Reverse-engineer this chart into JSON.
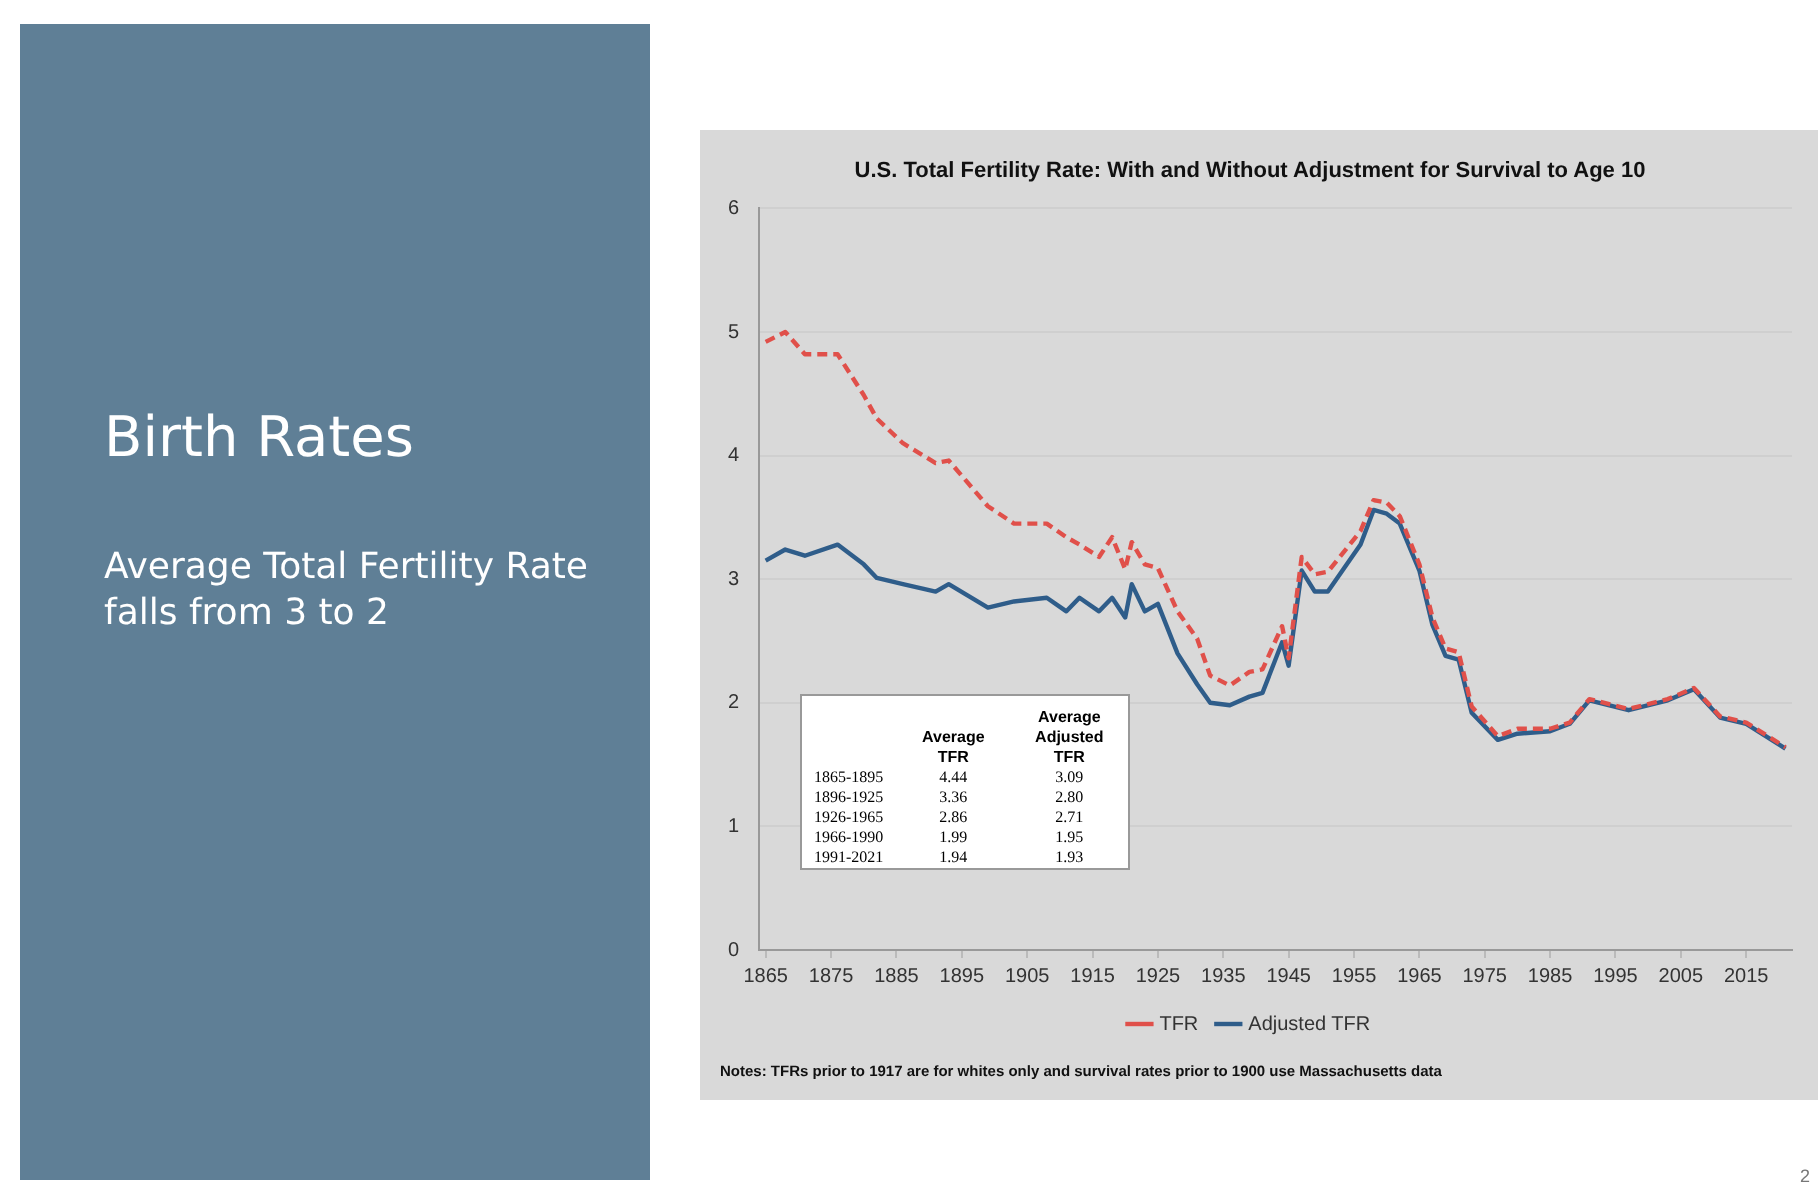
{
  "chart_data": [
    {
      "type": "other",
      "title": "Birth Rates",
      "subtitle": "Average Total Fertility Rate falls from 3 to 2",
      "annotations": [
        "2"
      ]
    },
    {
      "type": "line",
      "title": "U.S. Total Fertility Rate: With and Without Adjustment for Survival to Age 10",
      "x": [
        1865,
        1868,
        1871,
        1876,
        1880,
        1882,
        1886,
        1891,
        1893,
        1899,
        1903,
        1908,
        1911,
        1913,
        1916,
        1918,
        1920,
        1921,
        1923,
        1925,
        1928,
        1931,
        1933,
        1936,
        1939,
        1941,
        1944,
        1945,
        1947,
        1949,
        1951,
        1956,
        1958,
        1960,
        1962,
        1965,
        1967,
        1969,
        1971,
        1973,
        1977,
        1980,
        1985,
        1988,
        1991,
        1997,
        2003,
        2007,
        2011,
        2015,
        2021
      ],
      "series": [
        {
          "name": "TFR",
          "color": "#e0504a",
          "line_style": "dashed",
          "values": [
            4.92,
            5.0,
            4.82,
            4.82,
            4.49,
            4.3,
            4.1,
            3.94,
            3.96,
            3.59,
            3.45,
            3.45,
            3.34,
            3.28,
            3.18,
            3.34,
            3.08,
            3.3,
            3.12,
            3.09,
            2.74,
            2.52,
            2.22,
            2.14,
            2.25,
            2.27,
            2.62,
            2.36,
            3.18,
            3.04,
            3.06,
            3.39,
            3.64,
            3.62,
            3.51,
            3.12,
            2.69,
            2.44,
            2.41,
            1.97,
            1.73,
            1.79,
            1.79,
            1.84,
            2.03,
            1.95,
            2.03,
            2.12,
            1.89,
            1.84,
            1.64
          ]
        },
        {
          "name": "Adjusted TFR",
          "color": "#2f5d8a",
          "line_style": "solid",
          "values": [
            3.15,
            3.24,
            3.19,
            3.28,
            3.12,
            3.01,
            2.96,
            2.9,
            2.96,
            2.77,
            2.82,
            2.85,
            2.74,
            2.85,
            2.74,
            2.85,
            2.69,
            2.96,
            2.74,
            2.8,
            2.4,
            2.15,
            2.0,
            1.98,
            2.05,
            2.08,
            2.49,
            2.3,
            3.07,
            2.9,
            2.9,
            3.28,
            3.56,
            3.53,
            3.45,
            3.07,
            2.63,
            2.38,
            2.35,
            1.92,
            1.7,
            1.75,
            1.77,
            1.83,
            2.02,
            1.94,
            2.02,
            2.11,
            1.88,
            1.83,
            1.63
          ]
        }
      ],
      "xlim": [
        1864,
        2022
      ],
      "xticks": [
        1865,
        1875,
        1885,
        1895,
        1905,
        1915,
        1925,
        1935,
        1945,
        1955,
        1965,
        1975,
        1985,
        1995,
        2005,
        2015
      ],
      "ylim": [
        0,
        6
      ],
      "yticks": [
        0,
        1,
        2,
        3,
        4,
        5,
        6
      ],
      "grid": "y",
      "legend": "bottom",
      "marker": "none",
      "annotations": [
        "Average TFR",
        "Average Adjusted TFR",
        "1865-1895",
        "4.44",
        "3.09",
        "1896-1925",
        "3.36",
        "2.80",
        "1926-1965",
        "2.86",
        "2.71",
        "1966-1990",
        "1.99",
        "1.95",
        "1991-2021",
        "1.94",
        "1.93",
        "Notes: TFRs prior to 1917 are for whites only and survival rates prior to 1900 use Massachusetts data"
      ]
    }
  ]
}
